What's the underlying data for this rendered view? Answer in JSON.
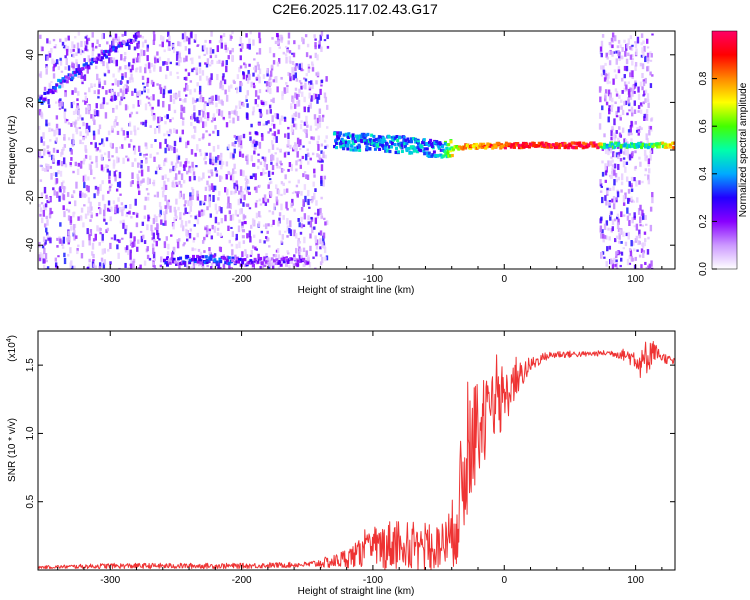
{
  "title": "C2E6.2025.117.02.43.G17",
  "chart_data": [
    {
      "type": "heatmap",
      "xlabel": "Height of straight line (km)",
      "ylabel": "Frequency (Hz)",
      "xlim": [
        -355,
        130
      ],
      "ylim": [
        -50,
        50
      ],
      "xticks": [
        -300,
        -200,
        -100,
        0,
        100
      ],
      "yticks": [
        -40,
        -20,
        0,
        20,
        40
      ],
      "colorbar": {
        "label": "Normalized spectral amplitude",
        "range": [
          0,
          1
        ],
        "ticks": [
          "0.0",
          "0.2",
          "0.4",
          "0.6",
          "0.8"
        ],
        "colors": [
          "#ffffff",
          "#cc99ff",
          "#8800ff",
          "#2200ff",
          "#00aaff",
          "#00ffaa",
          "#44ff00",
          "#ffff00",
          "#ff8800",
          "#ff0000",
          "#ff0066"
        ]
      },
      "features": [
        {
          "name": "carrier",
          "x": [
            -130,
            -100,
            -70,
            -50,
            -40,
            0,
            70,
            75,
            110,
            130
          ],
          "y": [
            4,
            3,
            2,
            0,
            1,
            2,
            2,
            2,
            2,
            2
          ],
          "amplitude": [
            0.35,
            0.4,
            0.4,
            0.35,
            0.7,
            0.9,
            0.95,
            0.5,
            0.5,
            0.8
          ]
        },
        {
          "name": "upper-diagonal",
          "x": [
            -355,
            -340,
            -320,
            -300,
            -280
          ],
          "y": [
            20,
            28,
            35,
            42,
            48
          ],
          "amplitude": [
            0.3,
            0.3,
            0.25,
            0.25,
            0.2
          ]
        },
        {
          "name": "near-vertical-streak",
          "x": [
            -200,
            -195,
            -190,
            -185
          ],
          "y": [
            -35,
            -15,
            5,
            20
          ],
          "amplitude": [
            0.2,
            0.2,
            0.2,
            0.2
          ]
        },
        {
          "name": "bottom-band",
          "x": [
            -260,
            -240,
            -220,
            -200,
            -180,
            -150
          ],
          "y": [
            -47,
            -46,
            -46,
            -47,
            -47,
            -47
          ],
          "amplitude": [
            0.2,
            0.25,
            0.3,
            0.2,
            0.15,
            0.15
          ]
        }
      ],
      "noise_regions": [
        [
          -355,
          -135
        ],
        [
          72,
          112
        ]
      ]
    },
    {
      "type": "line",
      "xlabel": "Height of straight line (km)",
      "ylabel": "SNR (10 * v/v)",
      "exponent_label": "(x10",
      "exponent_sup": "4",
      "exponent_close": ")",
      "xlim": [
        -355,
        130
      ],
      "ylim": [
        0,
        1.75
      ],
      "xticks": [
        -300,
        -200,
        -100,
        0,
        100
      ],
      "yticks": [
        0.5,
        1.0,
        1.5
      ],
      "ytick_labels": [
        "0.5",
        "1.0",
        "1.5"
      ],
      "line_color": "#ee3333",
      "series": [
        {
          "x": [
            -355,
            -300,
            -250,
            -200,
            -150,
            -130,
            -110,
            -100,
            -90,
            -80,
            -70,
            -60,
            -50,
            -40,
            -35,
            -30,
            -25,
            -20,
            -15,
            -10,
            0,
            10,
            20,
            30,
            40,
            60,
            80,
            90,
            100,
            105,
            110,
            115,
            120,
            130
          ],
          "y": [
            0.02,
            0.03,
            0.03,
            0.03,
            0.04,
            0.06,
            0.12,
            0.15,
            0.18,
            0.2,
            0.16,
            0.14,
            0.16,
            0.24,
            0.45,
            0.7,
            0.9,
            1.05,
            1.1,
            1.12,
            1.25,
            1.4,
            1.5,
            1.56,
            1.58,
            1.58,
            1.59,
            1.58,
            1.55,
            1.5,
            1.6,
            1.6,
            1.56,
            1.52
          ],
          "noise": [
            0.01,
            0.02,
            0.02,
            0.02,
            0.02,
            0.05,
            0.1,
            0.14,
            0.18,
            0.2,
            0.18,
            0.15,
            0.15,
            0.25,
            0.4,
            0.45,
            0.4,
            0.35,
            0.3,
            0.3,
            0.2,
            0.12,
            0.06,
            0.03,
            0.03,
            0.02,
            0.02,
            0.04,
            0.08,
            0.12,
            0.15,
            0.06,
            0.04,
            0.03
          ]
        }
      ]
    }
  ]
}
